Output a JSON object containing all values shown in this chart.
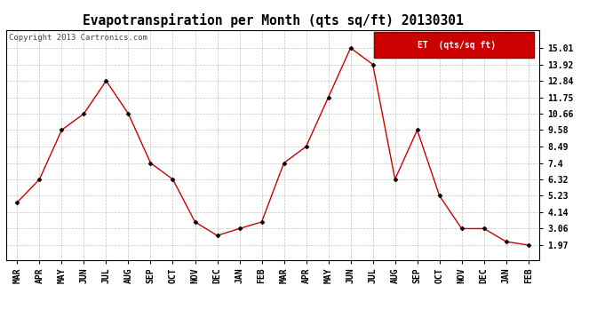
{
  "months": [
    "MAR",
    "APR",
    "MAY",
    "JUN",
    "JUL",
    "AUG",
    "SEP",
    "OCT",
    "NOV",
    "DEC",
    "JAN",
    "FEB",
    "MAR",
    "APR",
    "MAY",
    "JUN",
    "JUL",
    "AUG",
    "SEP",
    "OCT",
    "NOV",
    "DEC",
    "JAN",
    "FEB"
  ],
  "values": [
    4.8,
    6.32,
    9.58,
    10.66,
    12.84,
    10.66,
    7.4,
    6.32,
    3.5,
    2.6,
    3.06,
    3.5,
    7.4,
    8.49,
    11.75,
    15.01,
    13.92,
    6.32,
    9.58,
    5.23,
    3.06,
    3.06,
    2.2,
    1.97
  ],
  "yticks": [
    1.97,
    3.06,
    4.14,
    5.23,
    6.32,
    7.4,
    8.49,
    9.58,
    10.66,
    11.75,
    12.84,
    13.92,
    15.01
  ],
  "title": "Evapotranspiration per Month (qts sq/ft) 20130301",
  "legend_label": "ET  (qts/sq ft)",
  "copyright_text": "Copyright 2013 Cartronics.com",
  "line_color": "#cc0000",
  "marker_color": "#000000",
  "background_color": "#ffffff",
  "grid_color": "#bbbbbb",
  "title_fontsize": 10.5,
  "tick_fontsize": 7,
  "copyright_fontsize": 6.5,
  "legend_bg": "#cc0000",
  "legend_text_color": "#ffffff",
  "legend_fontsize": 7,
  "ylim_min": 1.0,
  "ylim_max": 16.2
}
